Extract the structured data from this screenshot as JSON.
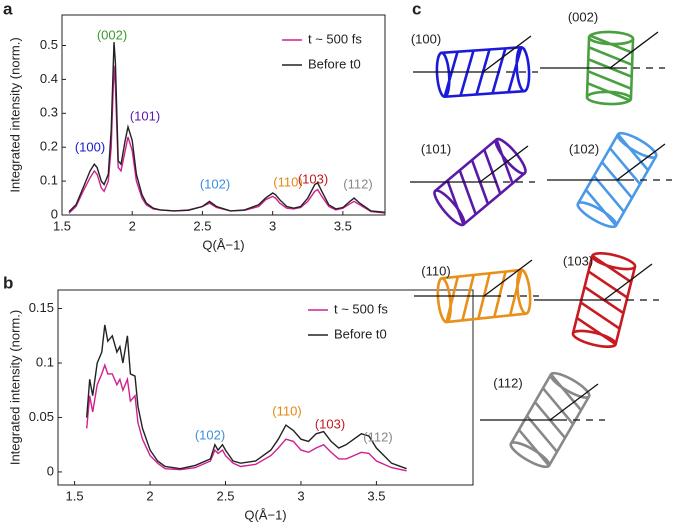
{
  "chart_data": [
    {
      "type": "line",
      "panel": "a",
      "xlabel": "Q(Å−1)",
      "ylabel": "Integrated intensity (norm.)",
      "xlim": [
        1.5,
        3.8
      ],
      "ylim": [
        0,
        0.59
      ],
      "xticks": [
        1.5,
        2,
        2.5,
        3,
        3.5
      ],
      "yticks": [
        0,
        0.1,
        0.2,
        0.3,
        0.4,
        0.5
      ],
      "x": [
        1.55,
        1.6,
        1.65,
        1.7,
        1.73,
        1.75,
        1.78,
        1.8,
        1.83,
        1.85,
        1.87,
        1.88,
        1.9,
        1.92,
        1.95,
        1.97,
        2.0,
        2.03,
        2.07,
        2.1,
        2.15,
        2.2,
        2.3,
        2.4,
        2.5,
        2.55,
        2.6,
        2.7,
        2.8,
        2.9,
        2.95,
        3.0,
        3.02,
        3.05,
        3.1,
        3.15,
        3.2,
        3.25,
        3.3,
        3.32,
        3.35,
        3.4,
        3.45,
        3.5,
        3.55,
        3.58,
        3.62,
        3.7,
        3.8
      ],
      "series": [
        {
          "name": "t ~ 500 fs",
          "color": "#d0208f",
          "values": [
            0.005,
            0.025,
            0.07,
            0.11,
            0.13,
            0.12,
            0.08,
            0.07,
            0.1,
            0.2,
            0.44,
            0.38,
            0.14,
            0.13,
            0.19,
            0.23,
            0.19,
            0.1,
            0.05,
            0.03,
            0.018,
            0.015,
            0.012,
            0.015,
            0.025,
            0.035,
            0.022,
            0.012,
            0.014,
            0.025,
            0.045,
            0.055,
            0.05,
            0.035,
            0.02,
            0.018,
            0.022,
            0.04,
            0.07,
            0.075,
            0.055,
            0.025,
            0.015,
            0.02,
            0.033,
            0.04,
            0.03,
            0.01,
            0.006
          ]
        },
        {
          "name": "Before t0",
          "color": "#222222",
          "values": [
            0.01,
            0.03,
            0.08,
            0.13,
            0.15,
            0.14,
            0.1,
            0.09,
            0.12,
            0.25,
            0.51,
            0.45,
            0.16,
            0.15,
            0.22,
            0.26,
            0.22,
            0.12,
            0.06,
            0.035,
            0.02,
            0.015,
            0.012,
            0.014,
            0.025,
            0.04,
            0.025,
            0.012,
            0.015,
            0.03,
            0.05,
            0.065,
            0.06,
            0.045,
            0.025,
            0.02,
            0.025,
            0.05,
            0.09,
            0.095,
            0.07,
            0.03,
            0.018,
            0.022,
            0.04,
            0.05,
            0.035,
            0.012,
            0.008
          ]
        }
      ],
      "annotations": [
        {
          "text": "(100)",
          "color": "#1a1ad0"
        },
        {
          "text": "(002)",
          "color": "#3a9a30"
        },
        {
          "text": "(101)",
          "color": "#5a1aa8"
        },
        {
          "text": "(102)",
          "color": "#3a8ee0"
        },
        {
          "text": "(110)",
          "color": "#e08a10"
        },
        {
          "text": "(103)",
          "color": "#c01a20"
        },
        {
          "text": "(112)",
          "color": "#888888"
        }
      ]
    },
    {
      "type": "line",
      "panel": "b",
      "xlabel": "Q(Å−1)",
      "ylabel": "Integrated intensity (norm.)",
      "xlim": [
        1.39,
        4.14
      ],
      "ylim": [
        -0.012,
        0.167
      ],
      "xticks": [
        1.5,
        2,
        2.5,
        3,
        3.5
      ],
      "yticks": [
        0,
        0.05,
        0.1,
        0.15
      ],
      "x": [
        1.58,
        1.6,
        1.62,
        1.65,
        1.68,
        1.7,
        1.72,
        1.75,
        1.78,
        1.8,
        1.82,
        1.85,
        1.87,
        1.9,
        1.92,
        1.95,
        2.0,
        2.05,
        2.1,
        2.2,
        2.3,
        2.4,
        2.43,
        2.45,
        2.48,
        2.5,
        2.55,
        2.6,
        2.7,
        2.8,
        2.85,
        2.9,
        2.95,
        3.0,
        3.05,
        3.1,
        3.15,
        3.2,
        3.25,
        3.3,
        3.35,
        3.4,
        3.45,
        3.5,
        3.6,
        3.7
      ],
      "series": [
        {
          "name": "t ~ 500 fs",
          "color": "#d0208f",
          "values": [
            0.04,
            0.07,
            0.055,
            0.08,
            0.09,
            0.098,
            0.09,
            0.09,
            0.08,
            0.085,
            0.075,
            0.085,
            0.065,
            0.07,
            0.045,
            0.03,
            0.015,
            0.008,
            0.003,
            0.002,
            0.004,
            0.01,
            0.02,
            0.017,
            0.02,
            0.015,
            0.008,
            0.005,
            0.007,
            0.015,
            0.022,
            0.03,
            0.028,
            0.02,
            0.018,
            0.022,
            0.025,
            0.018,
            0.012,
            0.012,
            0.015,
            0.018,
            0.017,
            0.01,
            0.004,
            0.001
          ]
        },
        {
          "name": "Before t0",
          "color": "#222222",
          "values": [
            0.05,
            0.085,
            0.07,
            0.1,
            0.11,
            0.135,
            0.12,
            0.125,
            0.11,
            0.115,
            0.1,
            0.125,
            0.09,
            0.088,
            0.06,
            0.04,
            0.02,
            0.01,
            0.005,
            0.003,
            0.006,
            0.012,
            0.025,
            0.02,
            0.025,
            0.02,
            0.01,
            0.008,
            0.01,
            0.02,
            0.03,
            0.043,
            0.038,
            0.03,
            0.028,
            0.035,
            0.037,
            0.028,
            0.022,
            0.025,
            0.03,
            0.035,
            0.033,
            0.022,
            0.008,
            0.003
          ]
        }
      ],
      "annotations": [
        {
          "text": "(102)",
          "color": "#3a8ee0"
        },
        {
          "text": "(110)",
          "color": "#e08a10"
        },
        {
          "text": "(103)",
          "color": "#c01a20"
        },
        {
          "text": "(112)",
          "color": "#888888"
        }
      ]
    }
  ],
  "diagram": {
    "label": "c",
    "items": [
      {
        "label": "(100)",
        "color": "#1a1ad8"
      },
      {
        "label": "(002)",
        "color": "#4aa040"
      },
      {
        "label": "(101)",
        "color": "#5a1aa8"
      },
      {
        "label": "(102)",
        "color": "#4a98e8"
      },
      {
        "label": "(110)",
        "color": "#e8901a"
      },
      {
        "label": "(103)",
        "color": "#c81a20"
      },
      {
        "label": "(112)",
        "color": "#888888"
      }
    ]
  }
}
